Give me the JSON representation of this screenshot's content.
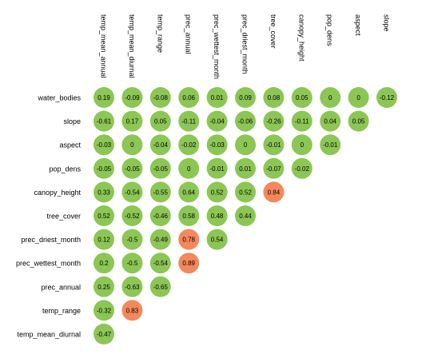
{
  "chart_data": {
    "type": "heatmap",
    "title": "",
    "xlabel": "",
    "ylabel": "",
    "columns": [
      "temp_mean_annual",
      "temp_mean_diurnal",
      "temp_range",
      "prec_annual",
      "prec_wettest_month",
      "prec_driest_month",
      "tree_cover",
      "canopy_height",
      "pop_dens",
      "aspect",
      "slope"
    ],
    "rows": [
      "water_bodies",
      "slope",
      "aspect",
      "pop_dens",
      "canopy_height",
      "tree_cover",
      "prec_driest_month",
      "prec_wettest_month",
      "prec_annual",
      "temp_range",
      "temp_mean_diurnal"
    ],
    "values": [
      [
        0.19,
        -0.09,
        -0.08,
        0.06,
        0.01,
        0.09,
        0.08,
        0.05,
        0,
        0,
        -0.12
      ],
      [
        -0.61,
        0.17,
        0.05,
        -0.11,
        -0.04,
        -0.06,
        -0.26,
        -0.11,
        0.04,
        0.05
      ],
      [
        -0.03,
        0,
        -0.04,
        -0.02,
        -0.03,
        0,
        -0.01,
        0,
        -0.01
      ],
      [
        -0.05,
        -0.05,
        -0.05,
        0,
        -0.01,
        0.01,
        -0.07,
        -0.02
      ],
      [
        0.33,
        -0.54,
        -0.55,
        0.64,
        0.52,
        0.52,
        0.84
      ],
      [
        0.52,
        -0.52,
        -0.46,
        0.58,
        0.48,
        0.44
      ],
      [
        0.12,
        -0.5,
        -0.49,
        0.78,
        0.54
      ],
      [
        0.2,
        -0.5,
        -0.54,
        0.89
      ],
      [
        0.25,
        -0.63,
        -0.65
      ],
      [
        -0.32,
        0.83
      ],
      [
        -0.47
      ]
    ],
    "highlight_threshold": 0.7,
    "colors": {
      "normal": "#8cc654",
      "highlight": "#f4885a"
    }
  }
}
